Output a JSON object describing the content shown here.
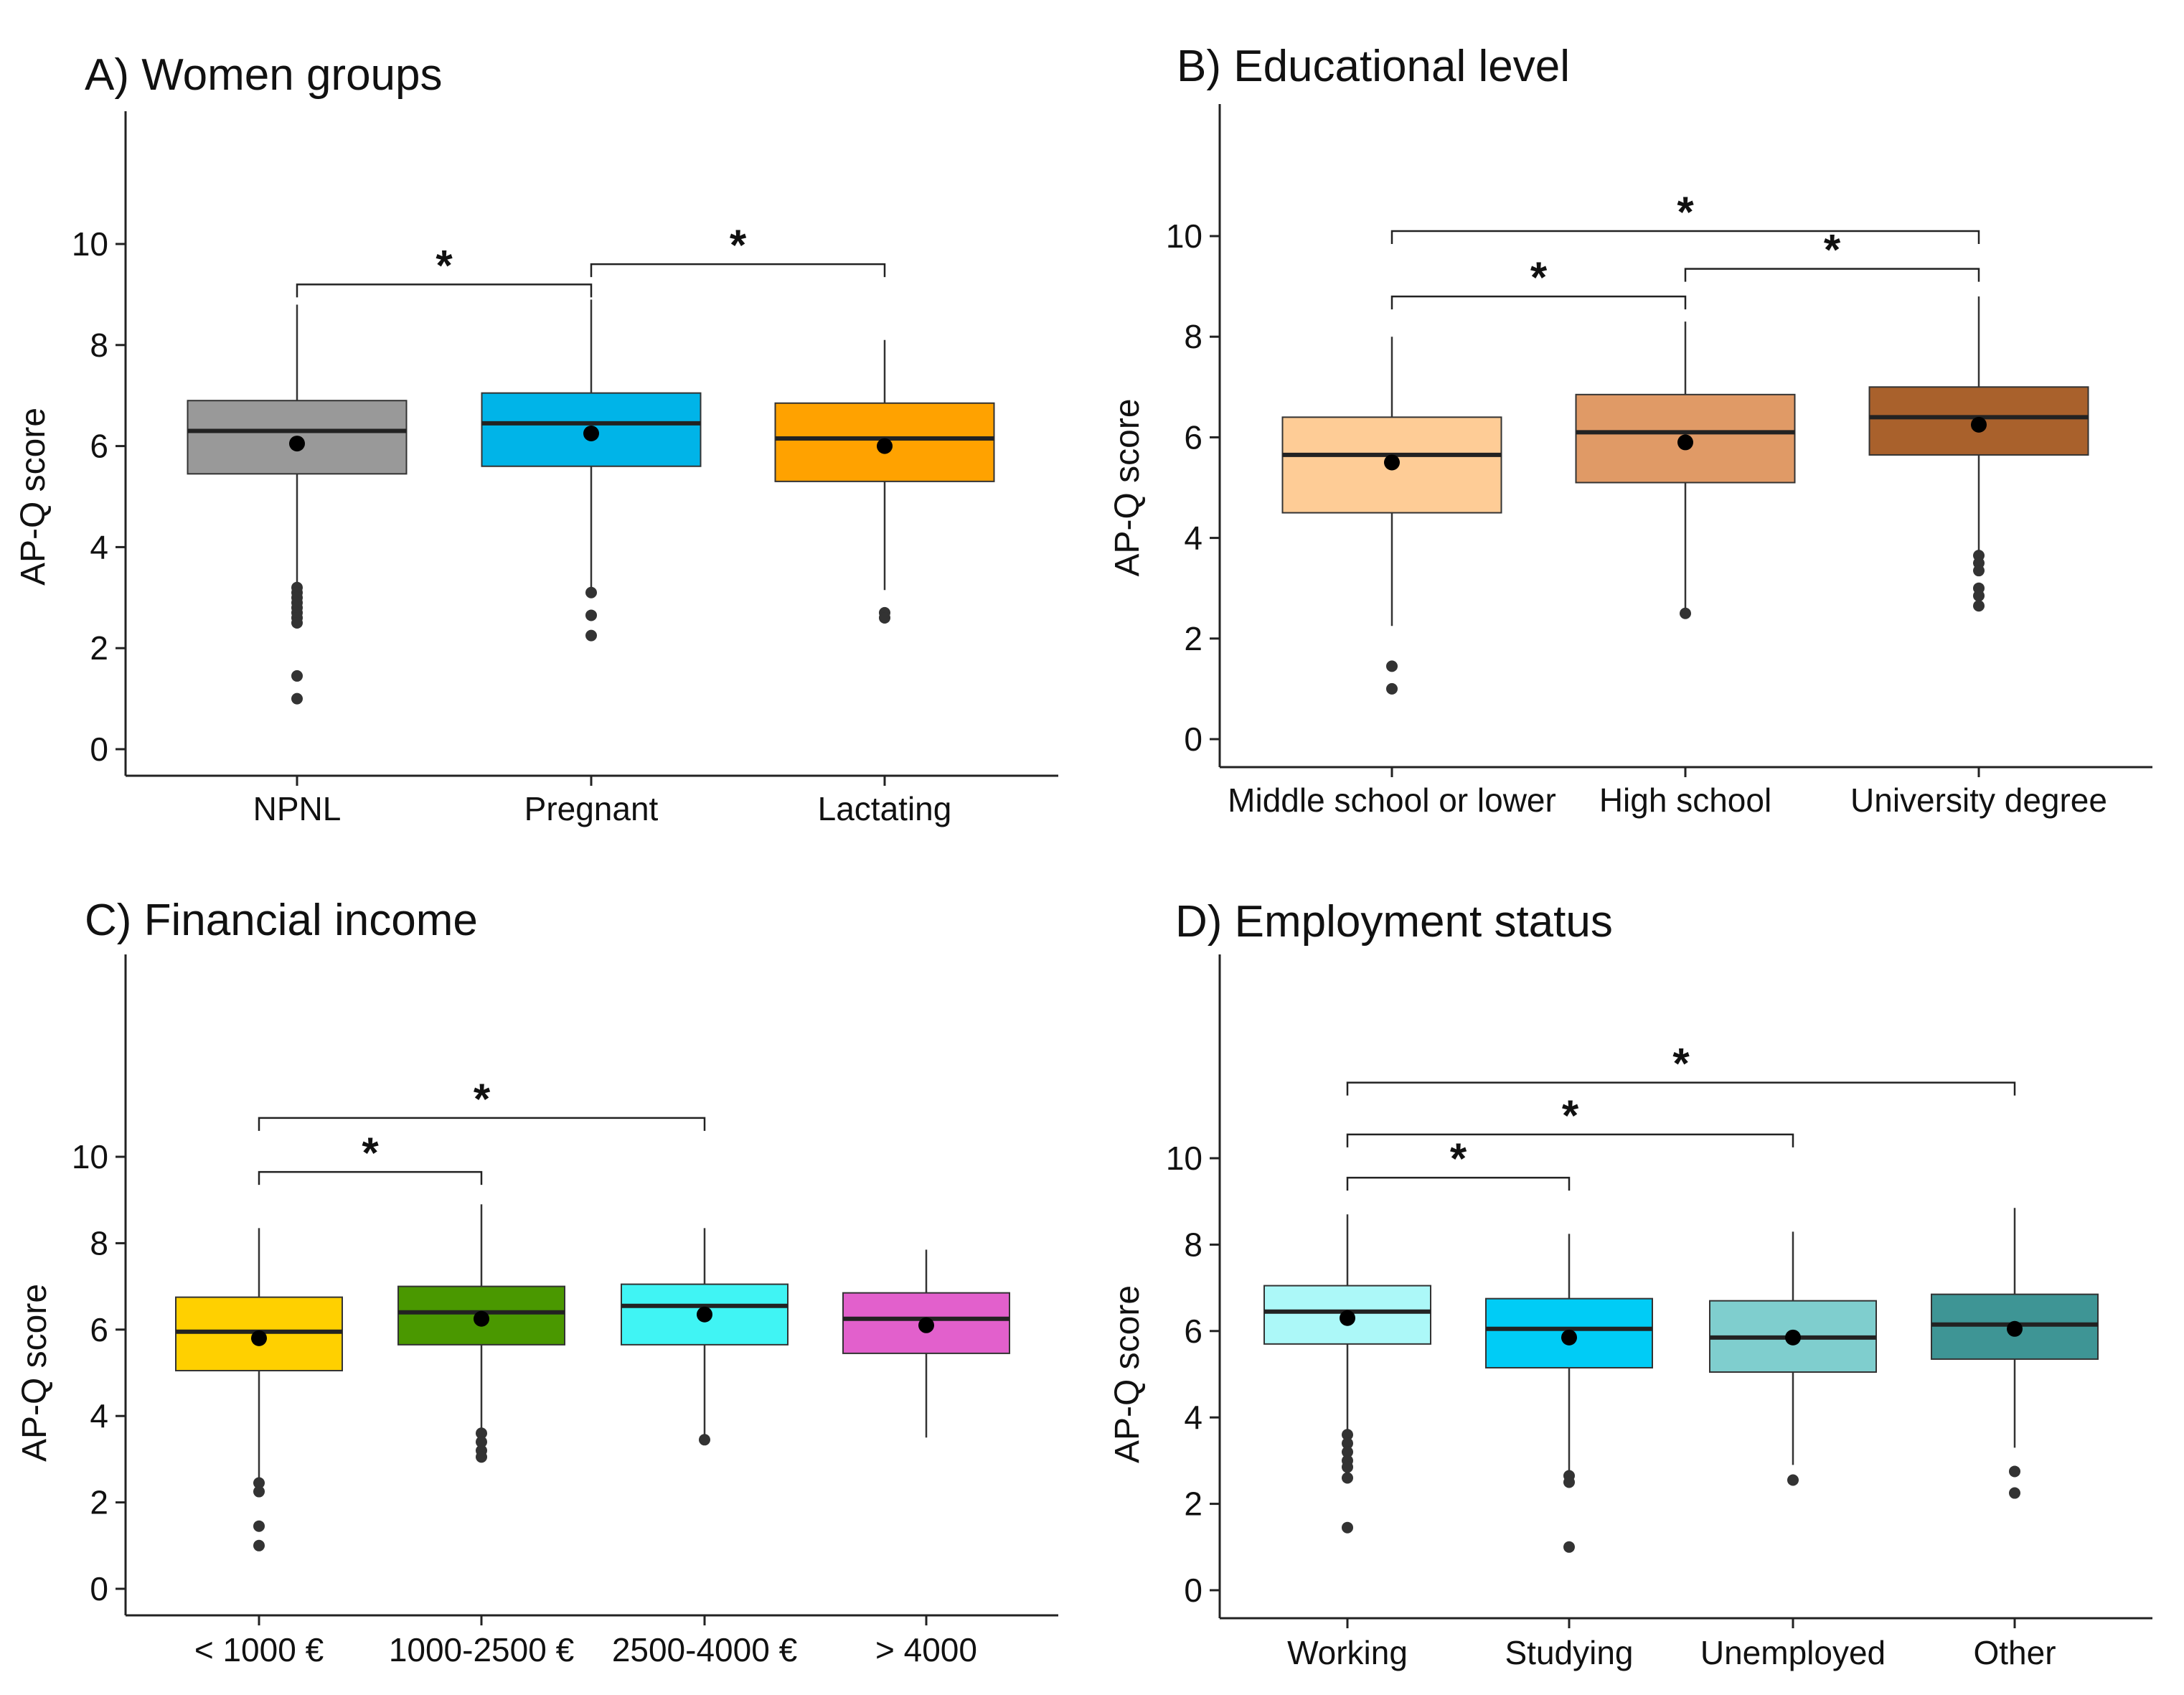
{
  "chart_data": [
    {
      "type": "box",
      "title": "A) Women groups",
      "ylabel": "AP-Q score",
      "xlabel": "",
      "ylim": [
        0,
        12
      ],
      "yticks": [
        0,
        2,
        4,
        6,
        8,
        10
      ],
      "grid": false,
      "categories": [
        {
          "name": "NPNL",
          "color": "#999999",
          "q1": 5.45,
          "median": 6.3,
          "q3": 6.9,
          "wlo": 3.3,
          "whi": 8.8,
          "mean": 6.05,
          "outliers": [
            3.2,
            3.1,
            3.0,
            2.9,
            2.8,
            2.7,
            2.6,
            2.5,
            1.45,
            1.0
          ]
        },
        {
          "name": "Pregnant",
          "color": "#00B4E8",
          "q1": 5.6,
          "median": 6.45,
          "q3": 7.05,
          "wlo": 3.2,
          "whi": 8.9,
          "mean": 6.25,
          "outliers": [
            3.1,
            2.65,
            2.25
          ]
        },
        {
          "name": "Lactating",
          "color": "#FFA200",
          "q1": 5.3,
          "median": 6.15,
          "q3": 6.85,
          "wlo": 3.15,
          "whi": 8.1,
          "mean": 6.0,
          "outliers": [
            2.7,
            2.6
          ]
        }
      ],
      "significance": [
        {
          "from": 0,
          "to": 1,
          "y": 9.2,
          "label": "*"
        },
        {
          "from": 1,
          "to": 2,
          "y": 9.6,
          "label": "*"
        }
      ]
    },
    {
      "type": "box",
      "title": "B) Educational level",
      "ylabel": "AP-Q score",
      "xlabel": "",
      "ylim": [
        0,
        12
      ],
      "yticks": [
        0,
        2,
        4,
        6,
        8,
        10
      ],
      "grid": false,
      "categories": [
        {
          "name": "Middle school or lower",
          "color": "#FECC96",
          "q1": 4.5,
          "median": 5.65,
          "q3": 6.4,
          "wlo": 2.25,
          "whi": 8.0,
          "mean": 5.5,
          "outliers": [
            1.45,
            1.0
          ]
        },
        {
          "name": "High school",
          "color": "#E09A66",
          "q1": 5.1,
          "median": 6.1,
          "q3": 6.85,
          "wlo": 2.6,
          "whi": 8.3,
          "mean": 5.9,
          "outliers": [
            2.5
          ]
        },
        {
          "name": "University degree",
          "color": "#A9612C",
          "q1": 5.65,
          "median": 6.4,
          "q3": 7.0,
          "wlo": 3.7,
          "whi": 8.8,
          "mean": 6.25,
          "outliers": [
            3.65,
            3.5,
            3.35,
            3.0,
            2.85,
            2.65
          ]
        }
      ],
      "significance": [
        {
          "from": 0,
          "to": 1,
          "y": 8.8,
          "label": "*"
        },
        {
          "from": 1,
          "to": 2,
          "y": 9.35,
          "label": "*"
        },
        {
          "from": 0,
          "to": 2,
          "y": 10.1,
          "label": "*"
        }
      ]
    },
    {
      "type": "box",
      "title": "C) Financial income",
      "ylabel": "AP-Q score",
      "xlabel": "",
      "ylim": [
        0,
        14.3
      ],
      "yticks": [
        0,
        2,
        4,
        6,
        8,
        10
      ],
      "grid": false,
      "categories": [
        {
          "name": "< 1000 €",
          "color": "#FFD000",
          "q1": 5.05,
          "median": 5.95,
          "q3": 6.75,
          "wlo": 2.55,
          "whi": 8.35,
          "mean": 5.8,
          "outliers": [
            2.45,
            2.25,
            1.45,
            1.0
          ]
        },
        {
          "name": "1000-2500 €",
          "color": "#4A9800",
          "q1": 5.65,
          "median": 6.4,
          "q3": 7.0,
          "wlo": 3.7,
          "whi": 8.9,
          "mean": 6.25,
          "outliers": [
            3.6,
            3.4,
            3.2,
            3.05
          ]
        },
        {
          "name": "2500-4000 €",
          "color": "#40F4F4",
          "q1": 5.65,
          "median": 6.55,
          "q3": 7.05,
          "wlo": 3.5,
          "whi": 8.35,
          "mean": 6.35,
          "outliers": [
            3.45
          ]
        },
        {
          "name": "> 4000",
          "color": "#E260CC",
          "q1": 5.45,
          "median": 6.25,
          "q3": 6.85,
          "wlo": 3.5,
          "whi": 7.85,
          "mean": 6.1,
          "outliers": []
        }
      ],
      "significance": [
        {
          "from": 0,
          "to": 1,
          "y": 9.65,
          "label": "*"
        },
        {
          "from": 0,
          "to": 2,
          "y": 10.9,
          "label": "*"
        }
      ]
    },
    {
      "type": "box",
      "title": "D) Employment status",
      "ylabel": "AP-Q score",
      "xlabel": "",
      "ylim": [
        0,
        14.3
      ],
      "yticks": [
        0,
        2,
        4,
        6,
        8,
        10
      ],
      "grid": false,
      "categories": [
        {
          "name": "Working",
          "color": "#ACF8F8",
          "q1": 5.7,
          "median": 6.45,
          "q3": 7.05,
          "wlo": 3.7,
          "whi": 8.7,
          "mean": 6.3,
          "outliers": [
            3.6,
            3.4,
            3.2,
            3.0,
            2.85,
            2.6,
            1.45
          ]
        },
        {
          "name": "Studying",
          "color": "#00CCF6",
          "q1": 5.15,
          "median": 6.05,
          "q3": 6.75,
          "wlo": 2.7,
          "whi": 8.25,
          "mean": 5.85,
          "outliers": [
            2.65,
            2.5,
            1.0
          ]
        },
        {
          "name": "Unemployed",
          "color": "#7FCECE",
          "q1": 5.05,
          "median": 5.85,
          "q3": 6.7,
          "wlo": 2.9,
          "whi": 8.3,
          "mean": 5.85,
          "outliers": [
            2.55
          ]
        },
        {
          "name": "Other",
          "color": "#3E9595",
          "q1": 5.35,
          "median": 6.15,
          "q3": 6.85,
          "wlo": 3.3,
          "whi": 8.85,
          "mean": 6.05,
          "outliers": [
            2.75,
            2.25
          ]
        }
      ],
      "significance": [
        {
          "from": 0,
          "to": 1,
          "y": 9.55,
          "label": "*"
        },
        {
          "from": 0,
          "to": 2,
          "y": 10.55,
          "label": "*"
        },
        {
          "from": 0,
          "to": 3,
          "y": 11.75,
          "label": "*"
        }
      ]
    }
  ]
}
